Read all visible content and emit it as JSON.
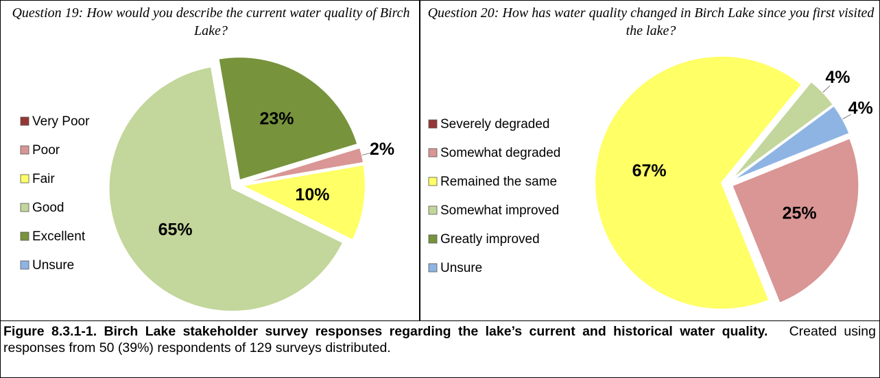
{
  "chart_data": [
    {
      "type": "pie",
      "title": "Question 19: How would you describe the current water quality of Birch Lake?",
      "categories": [
        "Very Poor",
        "Poor",
        "Fair",
        "Good",
        "Excellent",
        "Unsure"
      ],
      "values": [
        0,
        2,
        10,
        65,
        23,
        0
      ],
      "value_labels": [
        null,
        "2%",
        "10%",
        "65%",
        "23%",
        null
      ],
      "colors": [
        "#953735",
        "#d99694",
        "#ffff66",
        "#c3d69b",
        "#77933c",
        "#8eb4e3"
      ],
      "legend": "left"
    },
    {
      "type": "pie",
      "title": "Question 20: How has water quality changed in Birch Lake since you first visited the lake?",
      "categories": [
        "Severely degraded",
        "Somewhat degraded",
        "Remained the same",
        "Somewhat improved",
        "Greatly improved",
        "Unsure"
      ],
      "values": [
        0,
        25,
        67,
        4,
        0,
        4
      ],
      "value_labels": [
        null,
        "25%",
        "67%",
        "4%",
        null,
        "4%"
      ],
      "colors": [
        "#953735",
        "#d99694",
        "#ffff66",
        "#c3d69b",
        "#77933c",
        "#8eb4e3"
      ],
      "legend": "left"
    }
  ],
  "caption": {
    "bold": "Figure 8.3.1-1.  Birch Lake stakeholder survey responses regarding the lake’s current and historical water quality.",
    "text": "Created using responses from 50 (39%) respondents of 129 surveys distributed."
  }
}
